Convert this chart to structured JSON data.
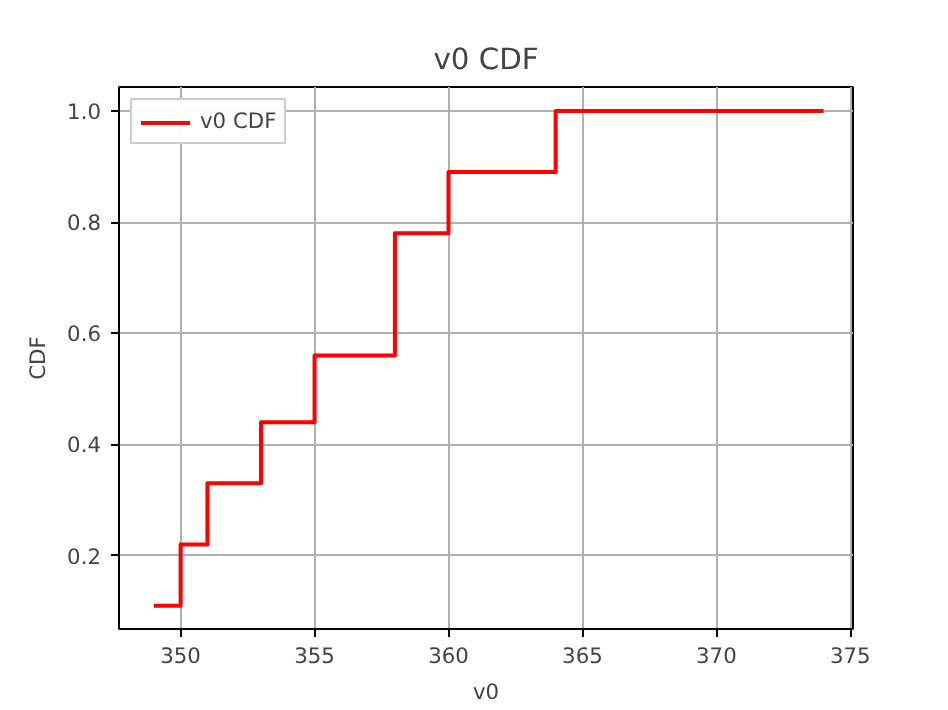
{
  "chart_data": {
    "type": "step",
    "title": "v0 CDF",
    "xlabel": "v0",
    "ylabel": "CDF",
    "x": [
      349,
      350,
      351,
      353,
      355,
      358,
      360,
      364,
      374
    ],
    "series": [
      {
        "name": "v0 CDF",
        "color": "#ff0000",
        "values": [
          0.11,
          0.22,
          0.33,
          0.44,
          0.56,
          0.78,
          0.89,
          1.0,
          1.0
        ]
      }
    ],
    "xlim": [
      347.7,
      375.1
    ],
    "ylim": [
      0.068,
      1.043
    ],
    "xticks": [
      350,
      355,
      360,
      365,
      370,
      375
    ],
    "yticks": [
      0.2,
      0.4,
      0.6,
      0.8,
      {
        "value": 1,
        "label": "1.0"
      }
    ],
    "grid": true,
    "legend": "top left",
    "line_style": "solid",
    "marker": "none"
  }
}
